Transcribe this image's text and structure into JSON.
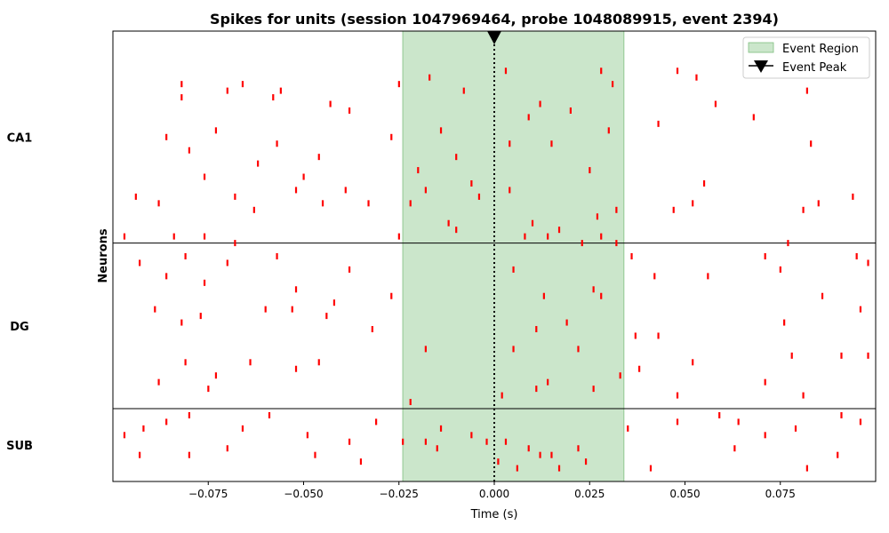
{
  "chart_data": {
    "type": "scatter",
    "title": "Spikes for units (session 1047969464, probe 1048089915, event 2394)",
    "xlabel": "Time (s)",
    "ylabel": "Neurons",
    "xlim": [
      -0.1,
      0.1
    ],
    "ylim": [
      0,
      68
    ],
    "x_ticks": [
      -0.075,
      -0.05,
      -0.025,
      0.0,
      0.025,
      0.05,
      0.075
    ],
    "x_tick_labels": [
      "−0.075",
      "−0.050",
      "−0.025",
      "0.000",
      "0.025",
      "0.050",
      "0.075"
    ],
    "grid": false,
    "legend_position": "top-right",
    "colors": {
      "spike": "#ff0000",
      "event_region": "#a8d5a8",
      "event_peak": "#000000"
    },
    "event_region": {
      "label": "Event Region",
      "start": -0.024,
      "end": 0.034
    },
    "event_peak": {
      "label": "Event Peak",
      "time": 0.0
    },
    "regions": [
      {
        "name": "CA1",
        "unit_start": 36,
        "unit_end": 68
      },
      {
        "name": "DG",
        "unit_start": 11,
        "unit_end": 36
      },
      {
        "name": "SUB",
        "unit_start": 0,
        "unit_end": 11
      }
    ],
    "region_boundaries": [
      11,
      36
    ],
    "spikes": [
      [
        -0.082,
        58
      ],
      [
        -0.082,
        60
      ],
      [
        -0.07,
        59
      ],
      [
        -0.066,
        60
      ],
      [
        -0.058,
        58
      ],
      [
        -0.056,
        59
      ],
      [
        -0.043,
        57
      ],
      [
        -0.038,
        56
      ],
      [
        -0.025,
        60
      ],
      [
        -0.017,
        61
      ],
      [
        -0.008,
        59
      ],
      [
        0.003,
        62
      ],
      [
        0.012,
        57
      ],
      [
        0.02,
        56
      ],
      [
        0.028,
        62
      ],
      [
        0.031,
        60
      ],
      [
        0.048,
        62
      ],
      [
        0.053,
        61
      ],
      [
        0.058,
        57
      ],
      [
        0.082,
        59
      ],
      [
        -0.086,
        52
      ],
      [
        -0.08,
        50
      ],
      [
        -0.073,
        53
      ],
      [
        -0.062,
        48
      ],
      [
        -0.057,
        51
      ],
      [
        -0.05,
        46
      ],
      [
        -0.046,
        49
      ],
      [
        -0.039,
        44
      ],
      [
        -0.027,
        52
      ],
      [
        -0.02,
        47
      ],
      [
        -0.014,
        53
      ],
      [
        -0.01,
        49
      ],
      [
        -0.006,
        45
      ],
      [
        0.004,
        51
      ],
      [
        0.009,
        55
      ],
      [
        0.015,
        51
      ],
      [
        0.025,
        47
      ],
      [
        0.03,
        53
      ],
      [
        0.043,
        54
      ],
      [
        0.055,
        45
      ],
      [
        0.068,
        55
      ],
      [
        0.083,
        51
      ],
      [
        -0.094,
        43
      ],
      [
        -0.088,
        42
      ],
      [
        -0.076,
        46
      ],
      [
        -0.068,
        43
      ],
      [
        -0.063,
        41
      ],
      [
        -0.052,
        44
      ],
      [
        -0.045,
        42
      ],
      [
        -0.033,
        42
      ],
      [
        -0.022,
        42
      ],
      [
        -0.018,
        44
      ],
      [
        -0.012,
        39
      ],
      [
        -0.004,
        43
      ],
      [
        0.004,
        44
      ],
      [
        0.01,
        39
      ],
      [
        0.017,
        38
      ],
      [
        0.027,
        40
      ],
      [
        0.032,
        41
      ],
      [
        0.047,
        41
      ],
      [
        0.052,
        42
      ],
      [
        0.081,
        41
      ],
      [
        0.085,
        42
      ],
      [
        0.094,
        43
      ],
      [
        -0.097,
        37
      ],
      [
        -0.084,
        37
      ],
      [
        -0.076,
        37
      ],
      [
        -0.068,
        36
      ],
      [
        -0.025,
        37
      ],
      [
        -0.01,
        38
      ],
      [
        0.008,
        37
      ],
      [
        0.014,
        37
      ],
      [
        0.023,
        36
      ],
      [
        0.028,
        37
      ],
      [
        0.032,
        36
      ],
      [
        0.077,
        36
      ],
      [
        -0.093,
        33
      ],
      [
        -0.086,
        31
      ],
      [
        -0.081,
        34
      ],
      [
        -0.076,
        30
      ],
      [
        -0.07,
        33
      ],
      [
        -0.057,
        34
      ],
      [
        -0.052,
        29
      ],
      [
        -0.038,
        32
      ],
      [
        -0.027,
        28
      ],
      [
        0.005,
        32
      ],
      [
        0.013,
        28
      ],
      [
        0.026,
        29
      ],
      [
        0.036,
        34
      ],
      [
        0.042,
        31
      ],
      [
        0.056,
        31
      ],
      [
        0.071,
        34
      ],
      [
        0.075,
        32
      ],
      [
        0.086,
        28
      ],
      [
        0.095,
        34
      ],
      [
        0.098,
        33
      ],
      [
        -0.089,
        26
      ],
      [
        -0.082,
        24
      ],
      [
        -0.077,
        25
      ],
      [
        -0.06,
        26
      ],
      [
        -0.053,
        26
      ],
      [
        -0.044,
        25
      ],
      [
        -0.042,
        27
      ],
      [
        -0.032,
        23
      ],
      [
        -0.018,
        20
      ],
      [
        0.005,
        20
      ],
      [
        0.011,
        23
      ],
      [
        0.019,
        24
      ],
      [
        0.022,
        20
      ],
      [
        0.028,
        28
      ],
      [
        0.037,
        22
      ],
      [
        0.043,
        22
      ],
      [
        0.076,
        24
      ],
      [
        0.091,
        19
      ],
      [
        0.096,
        26
      ],
      [
        0.098,
        19
      ],
      [
        -0.088,
        15
      ],
      [
        -0.081,
        18
      ],
      [
        -0.075,
        14
      ],
      [
        -0.073,
        16
      ],
      [
        -0.064,
        18
      ],
      [
        -0.052,
        17
      ],
      [
        -0.046,
        18
      ],
      [
        -0.022,
        12
      ],
      [
        0.002,
        13
      ],
      [
        0.011,
        14
      ],
      [
        0.014,
        15
      ],
      [
        0.026,
        14
      ],
      [
        0.033,
        16
      ],
      [
        0.038,
        17
      ],
      [
        0.048,
        13
      ],
      [
        0.052,
        18
      ],
      [
        0.071,
        15
      ],
      [
        0.078,
        19
      ],
      [
        0.081,
        13
      ],
      [
        -0.097,
        7
      ],
      [
        -0.092,
        8
      ],
      [
        -0.086,
        9
      ],
      [
        -0.08,
        10
      ],
      [
        -0.066,
        8
      ],
      [
        -0.059,
        10
      ],
      [
        -0.049,
        7
      ],
      [
        -0.038,
        6
      ],
      [
        -0.031,
        9
      ],
      [
        -0.018,
        6
      ],
      [
        -0.014,
        8
      ],
      [
        -0.006,
        7
      ],
      [
        0.003,
        6
      ],
      [
        0.009,
        5
      ],
      [
        0.015,
        4
      ],
      [
        0.022,
        5
      ],
      [
        0.035,
        8
      ],
      [
        0.048,
        9
      ],
      [
        0.059,
        10
      ],
      [
        0.064,
        9
      ],
      [
        0.071,
        7
      ],
      [
        0.079,
        8
      ],
      [
        0.091,
        10
      ],
      [
        0.096,
        9
      ],
      [
        -0.093,
        4
      ],
      [
        -0.08,
        4
      ],
      [
        -0.07,
        5
      ],
      [
        -0.047,
        4
      ],
      [
        -0.035,
        3
      ],
      [
        -0.024,
        6
      ],
      [
        -0.015,
        5
      ],
      [
        -0.002,
        6
      ],
      [
        0.001,
        3
      ],
      [
        0.006,
        2
      ],
      [
        0.012,
        4
      ],
      [
        0.017,
        2
      ],
      [
        0.024,
        3
      ],
      [
        0.041,
        2
      ],
      [
        0.063,
        5
      ],
      [
        0.082,
        2
      ],
      [
        0.09,
        4
      ]
    ]
  }
}
